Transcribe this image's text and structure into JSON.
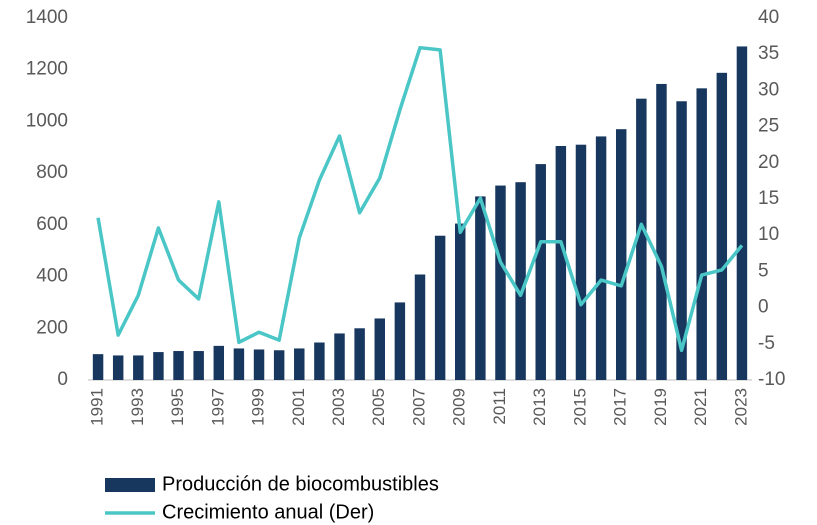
{
  "chart_data": {
    "type": "bar",
    "categories": [
      "1991",
      null,
      "1993",
      null,
      "1995",
      null,
      "1997",
      null,
      "1999",
      null,
      "2001",
      null,
      "2003",
      null,
      "2005",
      null,
      "2007",
      null,
      "2009",
      null,
      "2011",
      null,
      "2013",
      null,
      "2015",
      null,
      "2017",
      null,
      "2019",
      null,
      "2021",
      null,
      "2023"
    ],
    "series": [
      {
        "name": "Producción de biocombustibles",
        "color": "#17375e",
        "type": "bar",
        "values": [
          100,
          95,
          95,
          108,
          112,
          112,
          132,
          122,
          118,
          115,
          122,
          145,
          180,
          200,
          238,
          300,
          408,
          558,
          605,
          710,
          752,
          765,
          835,
          905,
          910,
          942,
          970,
          1088,
          1145,
          1078,
          1128,
          1188,
          1290
        ]
      },
      {
        "name": "Crecimiento anual (Der)",
        "color": "#4bc6c6",
        "type": "line",
        "axis": "y2",
        "values": [
          12.4,
          -3.8,
          1.7,
          11,
          3.8,
          1.2,
          14.6,
          -4.8,
          -3.4,
          -4.5,
          9.6,
          17.6,
          23.7,
          13.1,
          17.9,
          27.3,
          35.9,
          35.6,
          10.4,
          15.1,
          6.3,
          1.7,
          9.1,
          9.1,
          0.4,
          3.8,
          3,
          11.5,
          5.7,
          -5.9,
          4.5,
          5.2,
          8.6
        ]
      }
    ],
    "ylim": [
      0,
      1400
    ],
    "yticks": [
      0,
      200,
      400,
      600,
      800,
      1000,
      1200,
      1400
    ],
    "y2lim": [
      -10,
      40
    ],
    "y2ticks": [
      -10,
      -5,
      0,
      5,
      10,
      15,
      20,
      25,
      30,
      35,
      40
    ],
    "grid": false,
    "legend": "bottom"
  }
}
